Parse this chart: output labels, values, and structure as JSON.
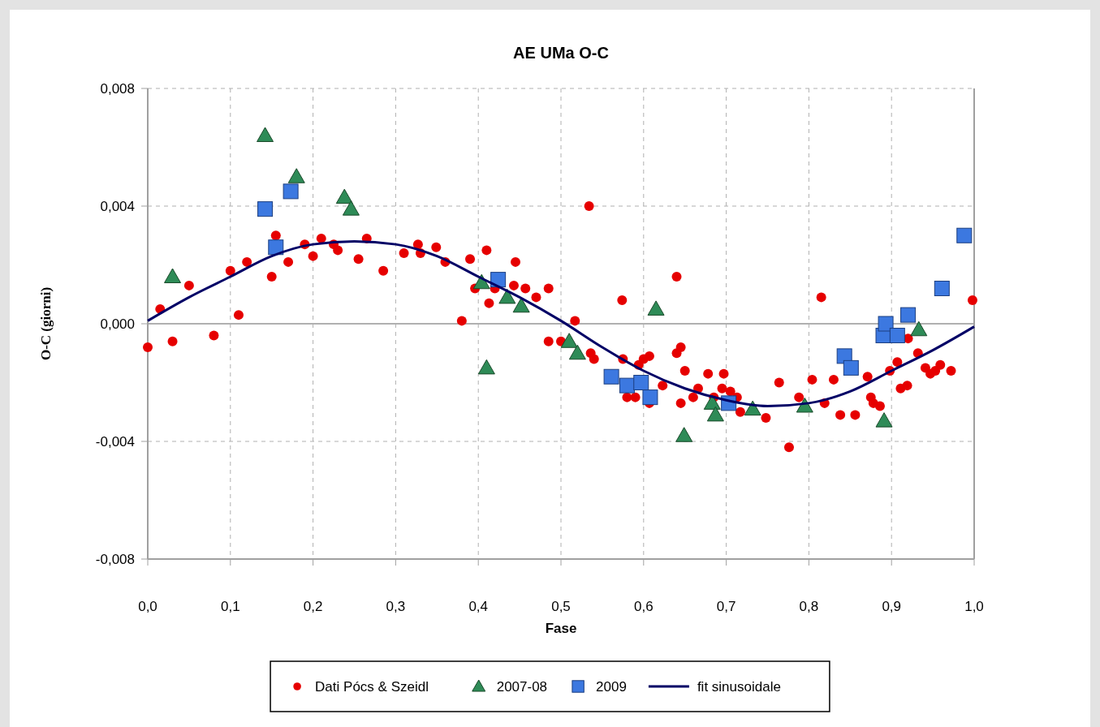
{
  "chart_data": {
    "type": "scatter",
    "title": "AE UMa O-C",
    "xlabel": "Fase",
    "ylabel": "O-C (giorni)",
    "xlim": [
      0,
      1
    ],
    "ylim": [
      -0.008,
      0.008
    ],
    "xticks": [
      {
        "value": 0,
        "label": "0,0"
      },
      {
        "value": 0.1,
        "label": "0,1"
      },
      {
        "value": 0.2,
        "label": "0,2"
      },
      {
        "value": 0.3,
        "label": "0,3"
      },
      {
        "value": 0.4,
        "label": "0,4"
      },
      {
        "value": 0.5,
        "label": "0,5"
      },
      {
        "value": 0.6,
        "label": "0,6"
      },
      {
        "value": 0.7,
        "label": "0,7"
      },
      {
        "value": 0.8,
        "label": "0,8"
      },
      {
        "value": 0.9,
        "label": "0,9"
      },
      {
        "value": 1,
        "label": "1,0"
      }
    ],
    "yticks": [
      {
        "value": -0.008,
        "label": "-0,008"
      },
      {
        "value": -0.004,
        "label": "-0,004"
      },
      {
        "value": 0,
        "label": "0,000"
      },
      {
        "value": 0.004,
        "label": "0,004"
      },
      {
        "value": 0.008,
        "label": "0,008"
      }
    ],
    "grid": true,
    "legend": "bottom",
    "series": [
      {
        "name": "Dati Pócs & Szeidl",
        "marker": "circle",
        "color": "#e60000",
        "x": [
          0,
          0.015,
          0.03,
          0.05,
          0.08,
          0.1,
          0.11,
          0.12,
          0.15,
          0.155,
          0.17,
          0.19,
          0.2,
          0.21,
          0.225,
          0.23,
          0.255,
          0.265,
          0.285,
          0.31,
          0.327,
          0.33,
          0.349,
          0.36,
          0.38,
          0.39,
          0.396,
          0.41,
          0.413,
          0.42,
          0.445,
          0.443,
          0.457,
          0.47,
          0.485,
          0.485,
          0.5,
          0.517,
          0.534,
          0.536,
          0.54,
          0.574,
          0.575,
          0.58,
          0.59,
          0.594,
          0.6,
          0.607,
          0.607,
          0.623,
          0.64,
          0.64,
          0.645,
          0.65,
          0.645,
          0.66,
          0.666,
          0.678,
          0.685,
          0.697,
          0.695,
          0.705,
          0.713,
          0.717,
          0.748,
          0.764,
          0.776,
          0.788,
          0.804,
          0.815,
          0.819,
          0.83,
          0.838,
          0.856,
          0.871,
          0.875,
          0.878,
          0.886,
          0.92,
          0.898,
          0.907,
          0.911,
          0.919,
          0.932,
          0.941,
          0.947,
          0.953,
          0.959,
          0.972,
          0.998
        ],
        "values": [
          -0.0008,
          0.0005,
          -0.0006,
          0.0013,
          -0.0004,
          0.0018,
          0.0003,
          0.0021,
          0.0016,
          0.003,
          0.0021,
          0.0027,
          0.0023,
          0.0029,
          0.0027,
          0.0025,
          0.0022,
          0.0029,
          0.0018,
          0.0024,
          0.0027,
          0.0024,
          0.0026,
          0.0021,
          0.0001,
          0.0022,
          0.0012,
          0.0025,
          0.0007,
          0.0012,
          0.0021,
          0.0013,
          0.0012,
          0.0009,
          0.0012,
          -0.0006,
          -0.0006,
          0.0001,
          0.004,
          -0.001,
          -0.0012,
          0.0008,
          -0.0012,
          -0.0025,
          -0.0025,
          -0.0014,
          -0.0012,
          -0.0011,
          -0.0027,
          -0.0021,
          0.0016,
          -0.001,
          -0.0008,
          -0.0016,
          -0.0027,
          -0.0025,
          -0.0022,
          -0.0017,
          -0.0025,
          -0.0017,
          -0.0022,
          -0.0023,
          -0.0025,
          -0.003,
          -0.0032,
          -0.002,
          -0.0042,
          -0.0025,
          -0.0019,
          0.0009,
          -0.0027,
          -0.0019,
          -0.0031,
          -0.0031,
          -0.0018,
          -0.0025,
          -0.0027,
          -0.0028,
          -0.0005,
          -0.0016,
          -0.0013,
          -0.0022,
          -0.0021,
          -0.001,
          -0.0015,
          -0.0017,
          -0.0016,
          -0.0014,
          -0.0016,
          0.0008
        ]
      },
      {
        "name": "2007-08",
        "marker": "triangle",
        "color": "#2e8b57",
        "x": [
          0.03,
          0.142,
          0.18,
          0.238,
          0.246,
          0.404,
          0.41,
          0.435,
          0.452,
          0.51,
          0.52,
          0.615,
          0.649,
          0.683,
          0.687,
          0.732,
          0.795,
          0.891,
          0.933
        ],
        "values": [
          0.0016,
          0.0064,
          0.005,
          0.0043,
          0.0039,
          0.0014,
          -0.0015,
          0.0009,
          0.0006,
          -0.0006,
          -0.001,
          0.0005,
          -0.0038,
          -0.0027,
          -0.0031,
          -0.0029,
          -0.0028,
          -0.0033,
          -0.0002
        ]
      },
      {
        "name": "2009",
        "marker": "square",
        "color": "#3c78e0",
        "x": [
          0.142,
          0.173,
          0.155,
          0.424,
          0.561,
          0.58,
          0.597,
          0.608,
          0.703,
          0.843,
          0.851,
          0.89,
          0.893,
          0.907,
          0.92,
          0.961,
          0.988
        ],
        "values": [
          0.0039,
          0.0045,
          0.0026,
          0.0015,
          -0.0018,
          -0.0021,
          -0.002,
          -0.0025,
          -0.0027,
          -0.0011,
          -0.0015,
          -0.0004,
          0,
          -0.0004,
          0.0003,
          0.0012,
          0.003
        ]
      },
      {
        "name": "fit sinusoidale",
        "type": "line",
        "marker": "none",
        "color": "#000066",
        "x": [
          0,
          0.05,
          0.1,
          0.15,
          0.2,
          0.25,
          0.3,
          0.35,
          0.4,
          0.45,
          0.5,
          0.55,
          0.6,
          0.65,
          0.7,
          0.75,
          0.8,
          0.85,
          0.9,
          0.95,
          1
        ],
        "values": [
          0.0001,
          0.0009,
          0.0016,
          0.0023,
          0.0027,
          0.0028,
          0.0027,
          0.0023,
          0.0016,
          0.0009,
          0.0001,
          -0.0008,
          -0.0016,
          -0.0022,
          -0.0026,
          -0.0028,
          -0.0027,
          -0.0023,
          -0.0016,
          -0.0009,
          -0.0001
        ]
      }
    ]
  }
}
